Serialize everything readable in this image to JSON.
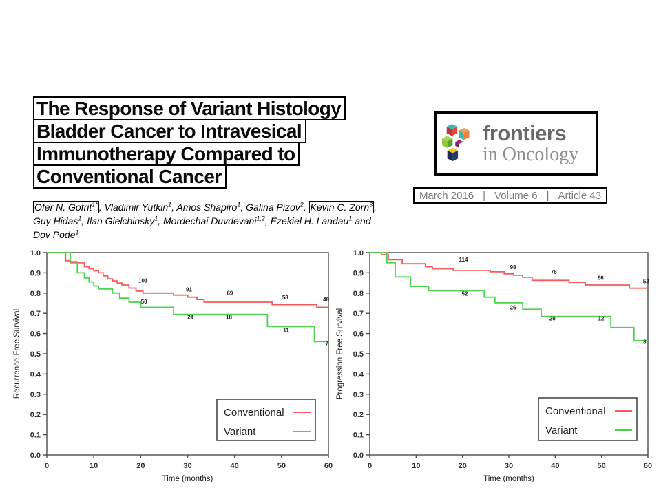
{
  "page": {
    "background": "#ffffff"
  },
  "article": {
    "title_lines": [
      "The Response of Variant Histology",
      "Bladder Cancer to Intravesical",
      "Immunotherapy Compared to",
      "Conventional Cancer"
    ],
    "authors": [
      {
        "name": "Ofer N. Gofrit",
        "sup": "1*",
        "boxed": true,
        "sep": ", "
      },
      {
        "name": "Vladimir Yutkin",
        "sup": "1",
        "boxed": false,
        "sep": ", "
      },
      {
        "name": "Amos Shapiro",
        "sup": "1",
        "boxed": false,
        "sep": ", "
      },
      {
        "name": "Galina Pizov",
        "sup": "2",
        "boxed": false,
        "sep": ", "
      },
      {
        "name": "Kevin C. Zorn",
        "sup": "3",
        "boxed": true,
        "sep": ", "
      },
      {
        "name": "Guy Hidas",
        "sup": "1",
        "boxed": false,
        "sep": ", "
      },
      {
        "name": "Ilan Gielchinsky",
        "sup": "1",
        "boxed": false,
        "sep": ", "
      },
      {
        "name": "Mordechai Duvdevani",
        "sup": "1,2",
        "boxed": false,
        "sep": ", "
      },
      {
        "name": "Ezekiel H. Landau",
        "sup": "1",
        "boxed": false,
        "sep": " and "
      },
      {
        "name": "Dov Pode",
        "sup": "1",
        "boxed": false,
        "sep": ""
      }
    ]
  },
  "journal": {
    "name": "frontiers",
    "edition": "in Oncology",
    "issue": {
      "date": "March 2016",
      "volume": "Volume 6",
      "article": "Article 43",
      "separator": "|"
    },
    "logo": {
      "colors": {
        "teal": "#3cb8b2",
        "red": "#e8463e",
        "red_dark": "#b93a3a",
        "orange": "#ef7f3b",
        "orange_light": "#f59b5b",
        "green": "#8dc63f",
        "green_light": "#a5d45e",
        "green_dark": "#5f9e33",
        "magenta": "#a02a70",
        "magenta_dark": "#7d1f5a",
        "navy": "#27386d",
        "navy_dark": "#1a2a55",
        "yellow": "#f6c41f"
      }
    }
  },
  "chart_data": [
    {
      "type": "line",
      "subtype": "kaplan-meier-step",
      "title": "",
      "xlabel": "Time (months)",
      "ylabel": "Recurrence Free Survival",
      "xlim": [
        0,
        60
      ],
      "ylim": [
        0.0,
        1.0
      ],
      "xticks": [
        0,
        10,
        20,
        30,
        40,
        50,
        60
      ],
      "yticks": [
        0.0,
        0.1,
        0.2,
        0.3,
        0.4,
        0.5,
        0.6,
        0.7,
        0.8,
        0.9,
        1.0
      ],
      "grid": false,
      "legend_position": "lower-right",
      "series": [
        {
          "name": "Conventional",
          "color": "#f25c5c",
          "points": [
            [
              0,
              1.0
            ],
            [
              4,
              0.96
            ],
            [
              5,
              0.95
            ],
            [
              8,
              0.93
            ],
            [
              9,
              0.92
            ],
            [
              10,
              0.91
            ],
            [
              11,
              0.9
            ],
            [
              12,
              0.885
            ],
            [
              13,
              0.87
            ],
            [
              14,
              0.86
            ],
            [
              15,
              0.85
            ],
            [
              16,
              0.84
            ],
            [
              17.5,
              0.825
            ],
            [
              19,
              0.81
            ],
            [
              20.5,
              0.8
            ],
            [
              27,
              0.79
            ],
            [
              30,
              0.78
            ],
            [
              32,
              0.768
            ],
            [
              33.5,
              0.755
            ],
            [
              48,
              0.743
            ],
            [
              57.5,
              0.73
            ]
          ]
        },
        {
          "name": "Variant",
          "color": "#4dd24d",
          "points": [
            [
              0,
              1.0
            ],
            [
              5,
              0.955
            ],
            [
              6.5,
              0.9
            ],
            [
              8,
              0.875
            ],
            [
              9,
              0.855
            ],
            [
              10,
              0.835
            ],
            [
              11,
              0.82
            ],
            [
              14,
              0.8
            ],
            [
              15.5,
              0.775
            ],
            [
              17.5,
              0.755
            ],
            [
              20,
              0.73
            ],
            [
              27,
              0.695
            ],
            [
              47,
              0.635
            ],
            [
              57,
              0.56
            ]
          ]
        }
      ],
      "at_risk_labels": [
        {
          "text": "101",
          "x": 20.5,
          "y": 0.852,
          "series": "Conventional"
        },
        {
          "text": "91",
          "x": 30.3,
          "y": 0.807,
          "series": "Conventional"
        },
        {
          "text": "69",
          "x": 39.0,
          "y": 0.79,
          "series": "Conventional"
        },
        {
          "text": "58",
          "x": 50.8,
          "y": 0.768,
          "series": "Conventional"
        },
        {
          "text": "48",
          "x": 59.5,
          "y": 0.758,
          "series": "Conventional"
        },
        {
          "text": "50",
          "x": 20.7,
          "y": 0.748,
          "series": "Variant"
        },
        {
          "text": "24",
          "x": 30.6,
          "y": 0.672,
          "series": "Variant"
        },
        {
          "text": "18",
          "x": 38.8,
          "y": 0.672,
          "series": "Variant"
        },
        {
          "text": "11",
          "x": 51.0,
          "y": 0.607,
          "series": "Variant"
        },
        {
          "text": "7",
          "x": 59.7,
          "y": 0.543,
          "series": "Variant"
        }
      ]
    },
    {
      "type": "line",
      "subtype": "kaplan-meier-step",
      "title": "",
      "xlabel": "Time (months)",
      "ylabel": "Progression Free Survival",
      "xlim": [
        0,
        60
      ],
      "ylim": [
        0.0,
        1.0
      ],
      "xticks": [
        0,
        10,
        20,
        30,
        40,
        50,
        60
      ],
      "yticks": [
        0.0,
        0.1,
        0.2,
        0.3,
        0.4,
        0.5,
        0.6,
        0.7,
        0.8,
        0.9,
        1.0
      ],
      "grid": false,
      "legend_position": "lower-right",
      "series": [
        {
          "name": "Conventional",
          "color": "#f25c5c",
          "points": [
            [
              0,
              1.0
            ],
            [
              2.5,
              0.99
            ],
            [
              4,
              0.965
            ],
            [
              7,
              0.945
            ],
            [
              12,
              0.93
            ],
            [
              13.5,
              0.92
            ],
            [
              18,
              0.912
            ],
            [
              26,
              0.905
            ],
            [
              29,
              0.895
            ],
            [
              31,
              0.888
            ],
            [
              33,
              0.878
            ],
            [
              35,
              0.863
            ],
            [
              43,
              0.853
            ],
            [
              46.5,
              0.84
            ],
            [
              56,
              0.824
            ]
          ]
        },
        {
          "name": "Variant",
          "color": "#4dd24d",
          "points": [
            [
              0,
              1.0
            ],
            [
              3.7,
              0.95
            ],
            [
              5.5,
              0.88
            ],
            [
              8.8,
              0.833
            ],
            [
              12.7,
              0.812
            ],
            [
              24.7,
              0.78
            ],
            [
              27,
              0.752
            ],
            [
              33,
              0.72
            ],
            [
              37,
              0.685
            ],
            [
              52,
              0.63
            ],
            [
              57,
              0.565
            ]
          ]
        }
      ],
      "at_risk_labels": [
        {
          "text": "114",
          "x": 20.2,
          "y": 0.955,
          "series": "Conventional"
        },
        {
          "text": "98",
          "x": 30.9,
          "y": 0.918,
          "series": "Conventional"
        },
        {
          "text": "76",
          "x": 39.7,
          "y": 0.894,
          "series": "Conventional"
        },
        {
          "text": "66",
          "x": 49.8,
          "y": 0.865,
          "series": "Conventional"
        },
        {
          "text": "53",
          "x": 59.6,
          "y": 0.848,
          "series": "Conventional"
        },
        {
          "text": "52",
          "x": 20.5,
          "y": 0.787,
          "series": "Variant"
        },
        {
          "text": "26",
          "x": 30.9,
          "y": 0.72,
          "series": "Variant"
        },
        {
          "text": "20",
          "x": 39.4,
          "y": 0.665,
          "series": "Variant"
        },
        {
          "text": "12",
          "x": 49.9,
          "y": 0.665,
          "series": "Variant"
        },
        {
          "text": "8",
          "x": 59.3,
          "y": 0.55,
          "series": "Variant"
        }
      ]
    }
  ]
}
